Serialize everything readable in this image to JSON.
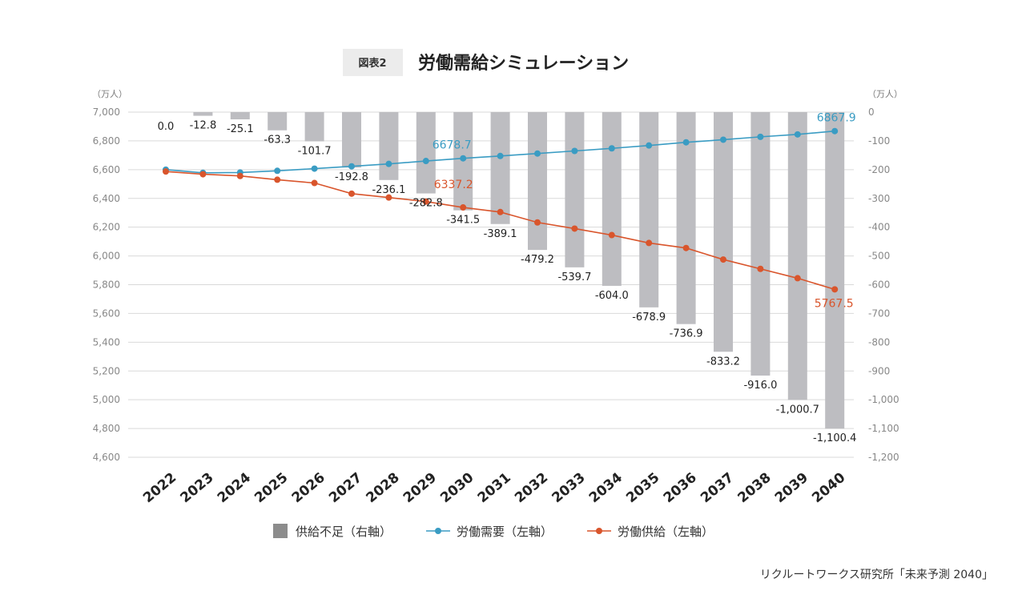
{
  "figure_tag": "図表2",
  "source": "リクルートワークス研究所「未来予測 2040」",
  "colors": {
    "bar": "#bdbdc1",
    "demand": "#3a9cc3",
    "supply": "#d9552c",
    "grid": "#d9d9d9"
  },
  "chart_data": {
    "type": "bar+line",
    "title": "労働需給シミュレーション",
    "categories": [
      "2022",
      "2023",
      "2024",
      "2025",
      "2026",
      "2027",
      "2028",
      "2029",
      "2030",
      "2031",
      "2032",
      "2033",
      "2034",
      "2035",
      "2036",
      "2037",
      "2038",
      "2039",
      "2040"
    ],
    "left_axis": {
      "unit": "（万人）",
      "ylim": [
        4600,
        7000
      ],
      "ticks": [
        4600,
        4800,
        5000,
        5200,
        5400,
        5600,
        5800,
        6000,
        6200,
        6400,
        6600,
        6800,
        7000
      ]
    },
    "right_axis": {
      "unit": "（万人）",
      "ylim": [
        -1200,
        0
      ],
      "ticks": [
        0,
        -100,
        -200,
        -300,
        -400,
        -500,
        -600,
        -700,
        -800,
        -900,
        -1000,
        -1100,
        -1200
      ]
    },
    "series": [
      {
        "name": "供給不足（右軸）",
        "type": "bar",
        "axis": "right",
        "values": [
          0.0,
          -12.8,
          -25.1,
          -63.3,
          -101.7,
          -192.8,
          -236.1,
          -282.8,
          -341.5,
          -389.1,
          -479.2,
          -539.7,
          -604.0,
          -678.9,
          -736.9,
          -833.2,
          -916.0,
          -1000.7,
          -1100.4
        ],
        "labels": [
          "0.0",
          "-12.8",
          "-25.1",
          "-63.3",
          "-101.7",
          "-192.8",
          "-236.1",
          "-282.8",
          "-341.5",
          "-389.1",
          "-479.2",
          "-539.7",
          "-604.0",
          "-678.9",
          "-736.9",
          "-833.2",
          "-916.0",
          "-1,000.7",
          "-1,100.4"
        ]
      },
      {
        "name": "労働需要（左軸）",
        "type": "line",
        "axis": "left",
        "values": [
          6600,
          6578,
          6580,
          6592,
          6607,
          6623,
          6640,
          6660,
          6678.7,
          6695,
          6712,
          6730,
          6748,
          6768,
          6790,
          6808,
          6828,
          6845,
          6867.9
        ]
      },
      {
        "name": "労働供給（左軸）",
        "type": "line",
        "axis": "left",
        "values": [
          6587,
          6568,
          6556,
          6530,
          6507,
          6433,
          6406,
          6378,
          6337.2,
          6305,
          6233,
          6190,
          6145,
          6090,
          6055,
          5975,
          5910,
          5845,
          5767.5
        ]
      }
    ],
    "annotations": [
      {
        "text": "6678.7",
        "series": "労働需要（左軸）",
        "index": 8
      },
      {
        "text": "6867.9",
        "series": "労働需要（左軸）",
        "index": 18
      },
      {
        "text": "6337.2",
        "series": "労働供給（左軸）",
        "index": 8
      },
      {
        "text": "5767.5",
        "series": "労働供給（左軸）",
        "index": 18
      }
    ],
    "legend": [
      "供給不足（右軸）",
      "労働需要（左軸）",
      "労働供給（左軸）"
    ],
    "legend_position": "bottom"
  }
}
